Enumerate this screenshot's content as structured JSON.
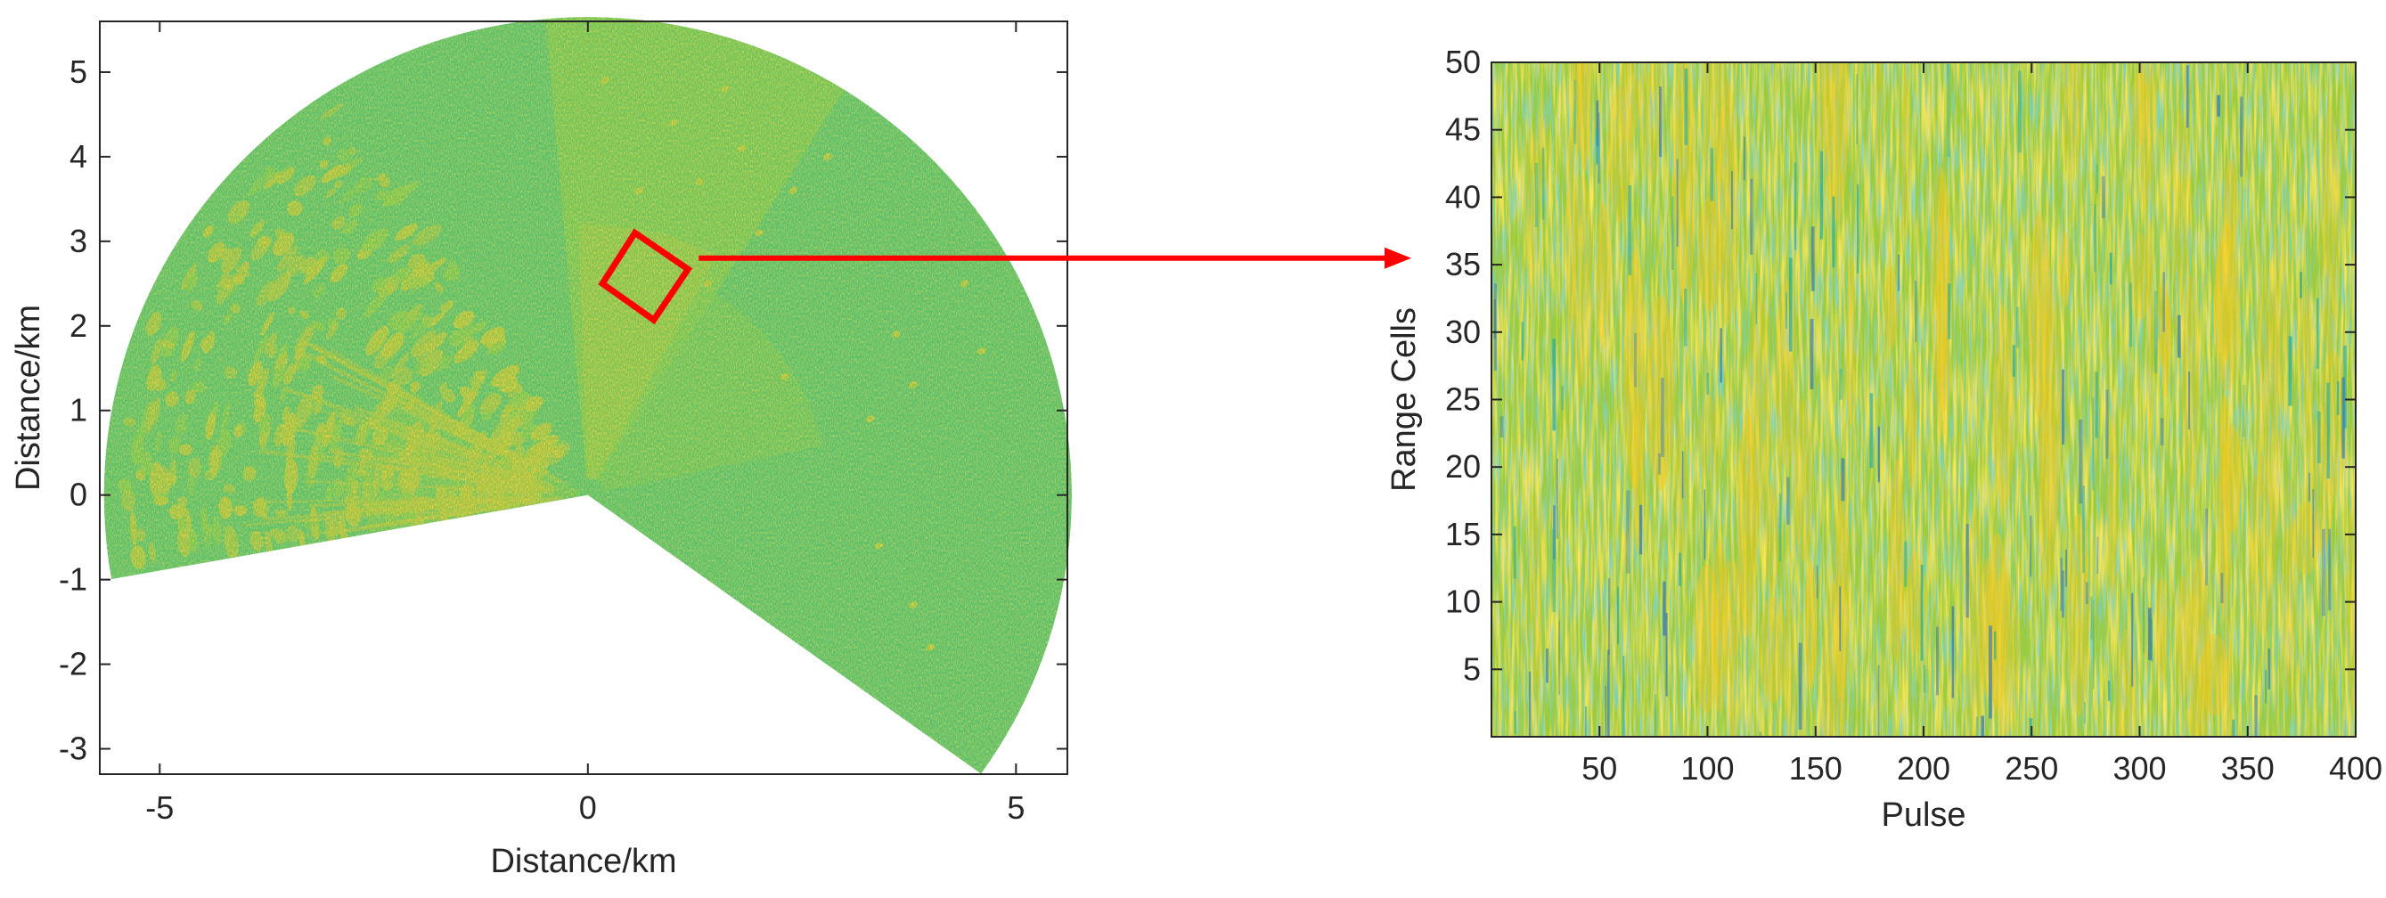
{
  "colors": {
    "clutter_base": "#5cc06a",
    "clutter_mid": "#9ccc3c",
    "clutter_strong": "#f0c81e",
    "clutter_low": "#22a9a0",
    "clutter_deep": "#2d6fbf",
    "highlight_box": "#ff0000",
    "arrow": "#ff0000",
    "axis": "#262626"
  },
  "chart_data": [
    {
      "type": "heatmap",
      "title": "",
      "subtitle": "",
      "xlabel": "Distance/km",
      "ylabel": "Distance/km",
      "xlim": [
        -5.7,
        5.6
      ],
      "ylim": [
        -3.3,
        5.6
      ],
      "xticks": [
        -5,
        0,
        5
      ],
      "xtick_labels": [
        "-5",
        "0",
        "5"
      ],
      "yticks": [
        -3,
        -2,
        -1,
        0,
        1,
        2,
        3,
        4,
        5
      ],
      "ytick_labels": [
        "-3",
        "-2",
        "-1",
        "0",
        "1",
        "2",
        "3",
        "4",
        "5"
      ],
      "grid": false,
      "legend": "none",
      "sector": {
        "origin": [
          0,
          0
        ],
        "radius_km": 5.65,
        "start_edge_point": [
          -5.6,
          -1.0
        ],
        "end_edge_point": [
          4.6,
          -3.3
        ]
      },
      "highlight_box_corners": [
        [
          0.55,
          3.1
        ],
        [
          1.17,
          2.67
        ],
        [
          0.77,
          2.07
        ],
        [
          0.17,
          2.5
        ]
      ]
    },
    {
      "type": "heatmap",
      "title": "",
      "subtitle": "",
      "xlabel": "Pulse",
      "ylabel": "Range Cells",
      "xlim": [
        0,
        400
      ],
      "ylim": [
        0,
        50
      ],
      "xticks": [
        50,
        100,
        150,
        200,
        250,
        300,
        350,
        400
      ],
      "xtick_labels": [
        "50",
        "100",
        "150",
        "200",
        "250",
        "300",
        "350",
        "400"
      ],
      "yticks": [
        5,
        10,
        15,
        20,
        25,
        30,
        35,
        40,
        45,
        50
      ],
      "ytick_labels": [
        "5",
        "10",
        "15",
        "20",
        "25",
        "30",
        "35",
        "40",
        "45",
        "50"
      ],
      "grid": false,
      "legend": "none",
      "n_pulses": 400,
      "n_range_cells": 50
    }
  ],
  "annotation": {
    "arrow_from": "highlight-box",
    "arrow_to": "zoomed-heatmap"
  }
}
